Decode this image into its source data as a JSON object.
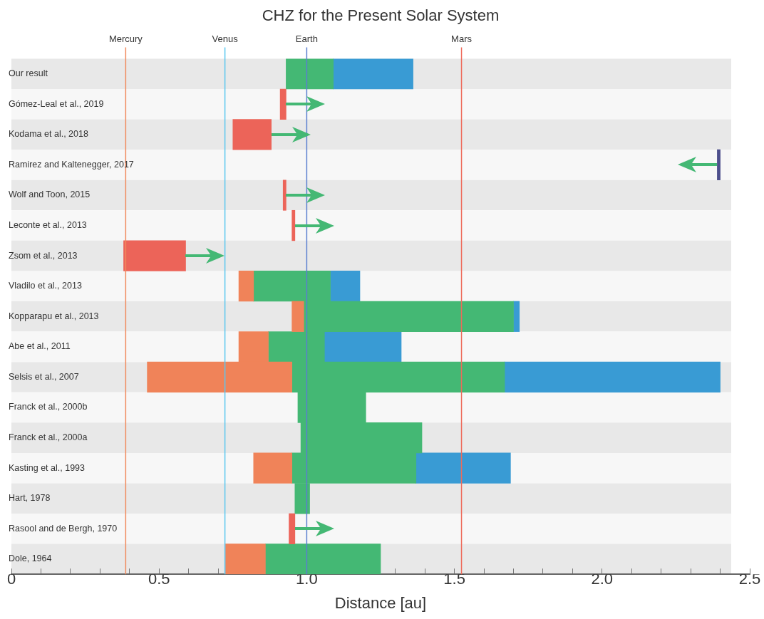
{
  "chart_data": {
    "type": "bar",
    "orientation": "horizontal",
    "title": "CHZ for the Present Solar System",
    "xlabel": "Distance [au]",
    "categories": [
      "Our result",
      "Gómez-Leal et al., 2019",
      "Kodama et al., 2018",
      "Ramirez and Kaltenegger, 2017",
      "Wolf and Toon, 2015",
      "Leconte et al., 2013",
      "Zsom et al., 2013",
      "Vladilo et al., 2013",
      "Kopparapu et al., 2013",
      "Abe et al., 2011",
      "Selsis et al., 2007",
      "Franck et al., 2000b",
      "Franck et al., 2000a",
      "Kasting et al., 1993",
      "Hart, 1978",
      "Rasool and de Bergh, 1970",
      "Dole, 1964"
    ],
    "series": [
      {
        "colors": [
          null,
          "#ec6459",
          "#ec6459",
          null,
          "#ec6459",
          "#ec6459",
          "#ec6459",
          "#f08359",
          "#f08359",
          "#f08359",
          "#f08359",
          null,
          null,
          "#f08359",
          null,
          "#ec6459",
          "#f08359"
        ],
        "base": [
          null,
          0.91,
          0.75,
          null,
          0.92,
          0.95,
          0.38,
          0.77,
          0.95,
          0.77,
          0.46,
          null,
          null,
          0.82,
          null,
          0.94,
          0.725
        ],
        "values": [
          null,
          0.02,
          0.13,
          null,
          0.01,
          0.01,
          0.21,
          0.05,
          0.04,
          0.1,
          0.49,
          null,
          null,
          0.13,
          null,
          0.02,
          0.135
        ]
      },
      {
        "color": "#44b874",
        "base": [
          0.93,
          null,
          null,
          null,
          null,
          null,
          null,
          0.82,
          0.99,
          0.87,
          0.95,
          0.97,
          0.98,
          0.95,
          0.96,
          null,
          0.86
        ],
        "values": [
          0.16,
          null,
          null,
          null,
          null,
          null,
          null,
          0.26,
          0.71,
          0.19,
          0.72,
          0.23,
          0.41,
          0.42,
          0.05,
          null,
          0.39
        ]
      },
      {
        "colors": [
          "#399bd4",
          null,
          null,
          "#4d4f8c",
          null,
          null,
          null,
          "#399bd4",
          "#399bd4",
          "#399bd4",
          "#399bd4",
          null,
          null,
          "#399bd4",
          null,
          null,
          null
        ],
        "base": [
          1.09,
          null,
          null,
          2.39,
          null,
          null,
          null,
          1.08,
          1.7,
          1.06,
          1.67,
          null,
          null,
          1.37,
          null,
          null,
          null
        ],
        "values": [
          0.27,
          null,
          null,
          0.01,
          null,
          null,
          null,
          0.1,
          0.02,
          0.26,
          0.73,
          null,
          null,
          0.32,
          null,
          null,
          null
        ]
      }
    ],
    "xlim": [
      0,
      2.5
    ],
    "xticks": [
      0,
      {
        "value": 0.1,
        "label": null
      },
      {
        "value": 0.2,
        "label": null
      },
      {
        "value": 0.3,
        "label": null
      },
      {
        "value": 0.4,
        "label": null
      },
      0.5,
      {
        "value": 0.6,
        "label": null
      },
      {
        "value": 0.7,
        "label": null
      },
      {
        "value": 0.8,
        "label": null
      },
      {
        "value": 0.9,
        "label": null
      },
      {
        "value": 1.0,
        "label": "1.0"
      },
      {
        "value": 1.1,
        "label": null
      },
      {
        "value": 1.2,
        "label": null
      },
      {
        "value": 1.3,
        "label": null
      },
      {
        "value": 1.4,
        "label": null
      },
      1.5,
      {
        "value": 1.6,
        "label": null
      },
      {
        "value": 1.7,
        "label": null
      },
      {
        "value": 1.8,
        "label": null
      },
      {
        "value": 1.9,
        "label": null
      },
      {
        "value": 2.0,
        "label": "2.0"
      },
      {
        "value": 2.1,
        "label": null
      },
      {
        "value": 2.2,
        "label": null
      },
      {
        "value": 2.3,
        "label": null
      },
      {
        "value": 2.4,
        "label": null
      },
      2.5
    ],
    "ref_lines": [
      {
        "axis": "x",
        "value": 0.387,
        "label": "Mercury",
        "color": "#f08a5d"
      },
      {
        "axis": "x",
        "value": 0.723,
        "label": "Venus",
        "color": "#5bc8ef"
      },
      {
        "axis": "x",
        "value": 1.0,
        "label": "Earth",
        "color": "#5b7fd0"
      },
      {
        "axis": "x",
        "value": 1.524,
        "label": "Mars",
        "color": "#ee6a5a"
      }
    ],
    "bands": [
      {
        "axis": "y",
        "from": "Our result",
        "to": "Our result",
        "color": "#e8e8e8"
      },
      {
        "axis": "y",
        "from": "Gómez-Leal et al., 2019",
        "to": "Gómez-Leal et al., 2019",
        "color": "#f7f7f7"
      },
      {
        "axis": "y",
        "from": "Kodama et al., 2018",
        "to": "Kodama et al., 2018",
        "color": "#e8e8e8"
      },
      {
        "axis": "y",
        "from": "Ramirez and Kaltenegger, 2017",
        "to": "Ramirez and Kaltenegger, 2017",
        "color": "#f7f7f7"
      },
      {
        "axis": "y",
        "from": "Wolf and Toon, 2015",
        "to": "Wolf and Toon, 2015",
        "color": "#e8e8e8"
      },
      {
        "axis": "y",
        "from": "Leconte et al., 2013",
        "to": "Leconte et al., 2013",
        "color": "#f7f7f7"
      },
      {
        "axis": "y",
        "from": "Zsom et al., 2013",
        "to": "Zsom et al., 2013",
        "color": "#e8e8e8"
      },
      {
        "axis": "y",
        "from": "Vladilo et al., 2013",
        "to": "Vladilo et al., 2013",
        "color": "#f7f7f7"
      },
      {
        "axis": "y",
        "from": "Kopparapu et al., 2013",
        "to": "Kopparapu et al., 2013",
        "color": "#e8e8e8"
      },
      {
        "axis": "y",
        "from": "Abe et al., 2011",
        "to": "Abe et al., 2011",
        "color": "#f7f7f7"
      },
      {
        "axis": "y",
        "from": "Selsis et al., 2007",
        "to": "Selsis et al., 2007",
        "color": "#e8e8e8"
      },
      {
        "axis": "y",
        "from": "Franck et al., 2000b",
        "to": "Franck et al., 2000b",
        "color": "#f7f7f7"
      },
      {
        "axis": "y",
        "from": "Franck et al., 2000a",
        "to": "Franck et al., 2000a",
        "color": "#e8e8e8"
      },
      {
        "axis": "y",
        "from": "Kasting et al., 1993",
        "to": "Kasting et al., 1993",
        "color": "#f7f7f7"
      },
      {
        "axis": "y",
        "from": "Hart, 1978",
        "to": "Hart, 1978",
        "color": "#e8e8e8"
      },
      {
        "axis": "y",
        "from": "Rasool and de Bergh, 1970",
        "to": "Rasool and de Bergh, 1970",
        "color": "#f7f7f7"
      },
      {
        "axis": "y",
        "from": "Dole, 1964",
        "to": "Dole, 1964",
        "color": "#e8e8e8"
      }
    ],
    "grid": false,
    "legend": false
  }
}
